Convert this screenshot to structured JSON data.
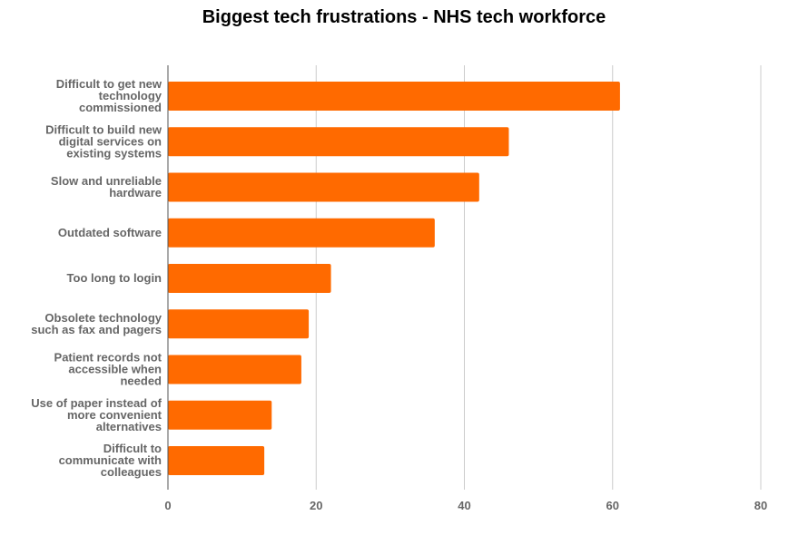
{
  "chart_data": {
    "type": "bar",
    "orientation": "horizontal",
    "title": "Biggest tech frustrations - NHS tech workforce",
    "xlabel": "",
    "ylabel": "",
    "xlim": [
      0,
      80
    ],
    "x_ticks": [
      0,
      20,
      40,
      60,
      80
    ],
    "grid": true,
    "bar_color": "#ff6a00",
    "categories": [
      [
        "Difficult to get new",
        "technology",
        "commissioned"
      ],
      [
        "Difficult to build new",
        "digital services on",
        "existing systems"
      ],
      [
        "Slow and unreliable",
        "hardware"
      ],
      [
        "Outdated software"
      ],
      [
        "Too long to login"
      ],
      [
        "Obsolete technology",
        "such as fax and pagers"
      ],
      [
        "Patient records not",
        "accessible when",
        "needed"
      ],
      [
        "Use of paper instead of",
        "more convenient",
        "alternatives"
      ],
      [
        "Difficult to",
        "communicate with",
        "colleagues"
      ]
    ],
    "values": [
      61,
      46,
      42,
      36,
      22,
      19,
      18,
      14,
      13
    ]
  }
}
